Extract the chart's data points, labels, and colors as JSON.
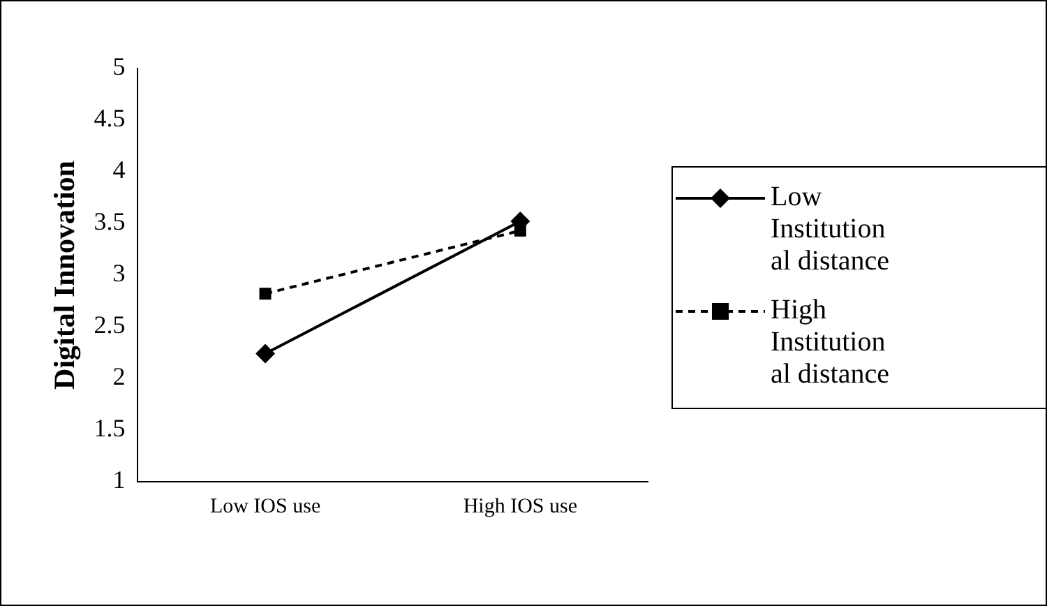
{
  "chart_data": {
    "type": "line",
    "ylabel": "Digital Innovation",
    "categories": [
      "Low IOS use",
      "High IOS use"
    ],
    "series": [
      {
        "name": "Low Institutional distance",
        "color": "#000000",
        "values": [
          2.24,
          3.52
        ],
        "marker": "diamond",
        "line_style": "solid"
      },
      {
        "name": "High Institutional distance",
        "color": "#000000",
        "values": [
          2.82,
          3.43
        ],
        "marker": "square",
        "line_style": "dashed"
      }
    ],
    "ylim": [
      1,
      5
    ],
    "yticks": [
      1,
      1.5,
      2,
      2.5,
      3,
      3.5,
      4,
      4.5,
      5
    ],
    "grid": false,
    "legend": "right"
  }
}
